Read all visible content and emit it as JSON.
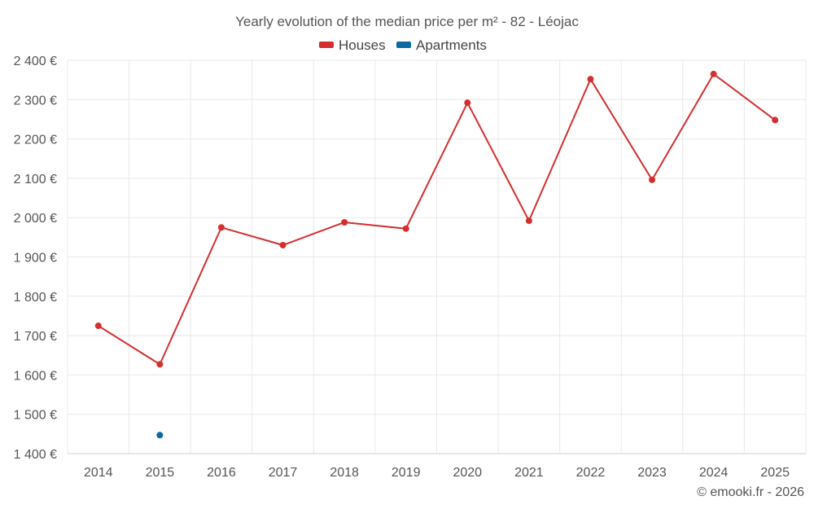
{
  "chart_data": {
    "type": "line",
    "title": "Yearly evolution of the median price per m² - 82 - Léojac",
    "categories": [
      "2014",
      "2015",
      "2016",
      "2017",
      "2018",
      "2019",
      "2020",
      "2021",
      "2022",
      "2023",
      "2024",
      "2025"
    ],
    "series": [
      {
        "name": "Houses",
        "color": "#d32f2f",
        "values": [
          1725,
          1627,
          1975,
          1930,
          1988,
          1972,
          2292,
          1992,
          2352,
          2096,
          2365,
          2248
        ]
      },
      {
        "name": "Apartments",
        "color": "#0a6aa1",
        "values": [
          null,
          1447,
          null,
          null,
          null,
          null,
          null,
          null,
          null,
          null,
          null,
          null
        ]
      }
    ],
    "ylim": [
      1400,
      2400
    ],
    "ytick_labels": [
      "1 400 €",
      "1 500 €",
      "1 600 €",
      "1 700 €",
      "1 800 €",
      "1 900 €",
      "2 000 €",
      "2 100 €",
      "2 200 €",
      "2 300 €",
      "2 400 €"
    ],
    "ytick_values": [
      1400,
      1500,
      1600,
      1700,
      1800,
      1900,
      2000,
      2100,
      2200,
      2300,
      2400
    ],
    "grid": true,
    "legend": "top-center"
  },
  "credit": "© emooki.fr - 2026"
}
